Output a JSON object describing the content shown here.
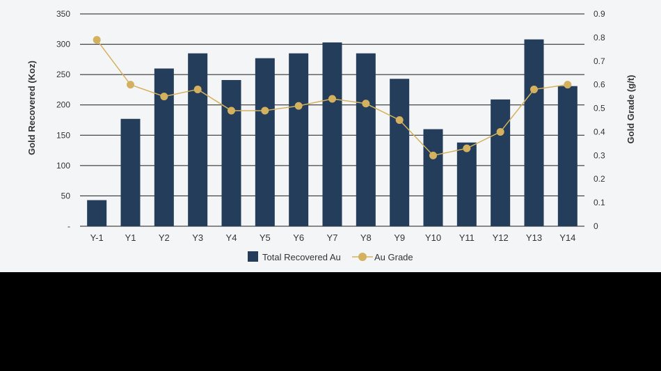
{
  "colors": {
    "background": "#f4f5f7",
    "bar": "#233d5a",
    "line": "#d4b15e",
    "grid": "#1a1a1a",
    "text": "#333333"
  },
  "chart_data": {
    "type": "bar",
    "categories": [
      "Y-1",
      "Y1",
      "Y2",
      "Y3",
      "Y4",
      "Y5",
      "Y6",
      "Y7",
      "Y8",
      "Y9",
      "Y10",
      "Y11",
      "Y12",
      "Y13",
      "Y14"
    ],
    "series": [
      {
        "name": "Total Recovered Au",
        "type": "bar",
        "axis": "left",
        "values": [
          43,
          177,
          260,
          285,
          241,
          277,
          285,
          303,
          285,
          243,
          160,
          138,
          209,
          308,
          231
        ]
      },
      {
        "name": "Au Grade",
        "type": "line",
        "axis": "right",
        "values": [
          0.79,
          0.6,
          0.55,
          0.58,
          0.49,
          0.49,
          0.51,
          0.54,
          0.52,
          0.45,
          0.3,
          0.33,
          0.4,
          0.58,
          0.6
        ]
      }
    ],
    "ylabel": "Gold Recovered (Koz)",
    "ylabel_right": "Gold Grade (g/t)",
    "ylim": [
      0,
      350
    ],
    "ylim_right": [
      0,
      0.9
    ],
    "yticks": [
      "-",
      "50",
      "100",
      "150",
      "200",
      "250",
      "300",
      "350"
    ],
    "yticks_right": [
      "0",
      "0.1",
      "0.2",
      "0.3",
      "0.4",
      "0.5",
      "0.6",
      "0.7",
      "0.8",
      "0.9"
    ],
    "grid": true,
    "legend_position": "bottom-center"
  }
}
